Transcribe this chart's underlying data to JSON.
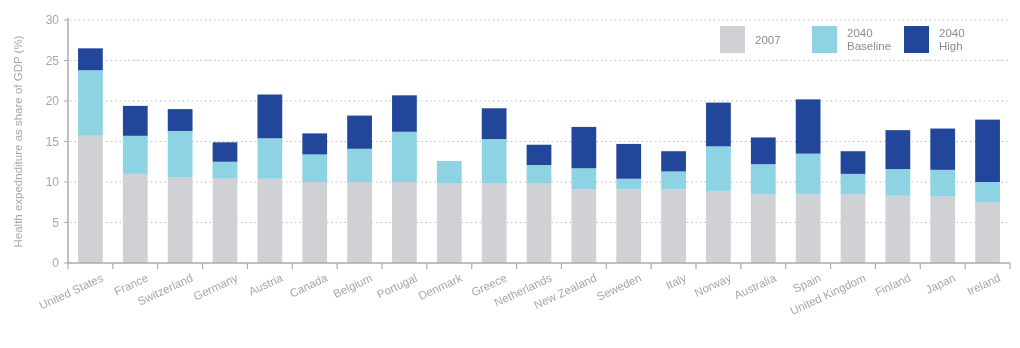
{
  "chart_data": {
    "type": "bar",
    "stacked": true,
    "ylabel": "Health expednditure as share of GDP (%)",
    "categories": [
      "United States",
      "France",
      "Switzerland",
      "Germany",
      "Austria",
      "Canada",
      "Belgium",
      "Portugal",
      "Denmark",
      "Greece",
      "Netherlands",
      "New Zealand",
      "Seweden",
      "Italy",
      "Norway",
      "Australia",
      "Spain",
      "United Kingdom",
      "Finland",
      "Japan",
      "Ireland"
    ],
    "series": [
      {
        "name": "2007",
        "color": "#cfd1d4",
        "values": [
          15.8,
          11.0,
          10.6,
          10.4,
          10.4,
          10.0,
          10.0,
          10.0,
          9.8,
          9.8,
          9.8,
          9.1,
          9.1,
          9.1,
          8.9,
          8.5,
          8.5,
          8.5,
          8.3,
          8.2,
          7.5
        ]
      },
      {
        "name": "2040 Baseline",
        "color": "#8dd3e4",
        "values": [
          8.0,
          4.7,
          5.7,
          2.1,
          5.0,
          3.4,
          4.1,
          6.2,
          2.8,
          5.5,
          2.3,
          2.6,
          1.3,
          2.2,
          5.5,
          3.7,
          5.0,
          2.5,
          3.3,
          3.3,
          2.5
        ]
      },
      {
        "name": "2040 High",
        "color": "#22479a",
        "values": [
          2.7,
          3.7,
          2.7,
          2.4,
          5.4,
          2.6,
          4.1,
          4.5,
          0,
          3.8,
          2.5,
          5.1,
          4.3,
          2.5,
          5.4,
          3.3,
          6.7,
          2.8,
          4.8,
          5.1,
          7.7
        ]
      }
    ],
    "ylim": [
      0,
      30
    ],
    "yticks": [
      0,
      5,
      10,
      15,
      20,
      25,
      30
    ],
    "grid": "y",
    "legend": "top right"
  }
}
